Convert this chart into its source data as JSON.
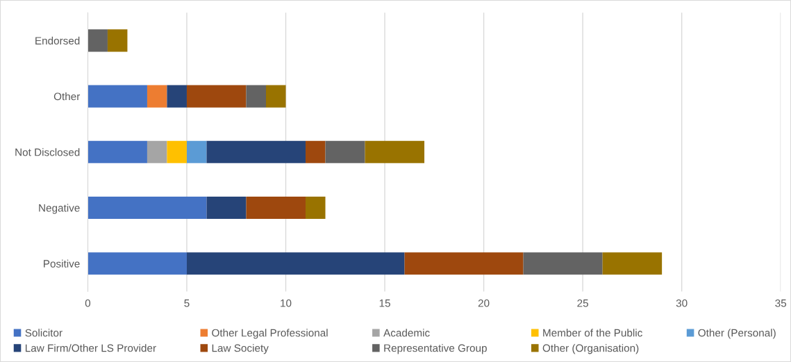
{
  "chart_data": {
    "type": "bar",
    "orientation": "horizontal",
    "stacked": true,
    "categories": [
      "Endorsed",
      "Other",
      "Not Disclosed",
      "Negative",
      "Positive"
    ],
    "series": [
      {
        "name": "Solicitor",
        "color": "#4472c4",
        "values": [
          null,
          3,
          3,
          6,
          5
        ]
      },
      {
        "name": "Other Legal Professional",
        "color": "#ed7d31",
        "values": [
          null,
          1,
          null,
          null,
          null
        ]
      },
      {
        "name": "Academic",
        "color": "#a5a5a5",
        "values": [
          null,
          null,
          1,
          null,
          null
        ]
      },
      {
        "name": "Member of the Public",
        "color": "#ffc000",
        "values": [
          null,
          null,
          1,
          null,
          null
        ]
      },
      {
        "name": "Other (Personal)",
        "color": "#5b9bd5",
        "values": [
          null,
          null,
          1,
          null,
          null
        ]
      },
      {
        "name": "Law Firm/Other LS Provider",
        "color": "#264478",
        "values": [
          null,
          1,
          5,
          2,
          11
        ]
      },
      {
        "name": "Law Society",
        "color": "#9e480e",
        "values": [
          null,
          3,
          1,
          3,
          6
        ]
      },
      {
        "name": "Representative Group",
        "color": "#636363",
        "values": [
          1,
          1,
          2,
          null,
          4
        ]
      },
      {
        "name": "Other (Organisation)",
        "color": "#997300",
        "values": [
          1,
          1,
          3,
          1,
          3
        ]
      }
    ],
    "xlim": [
      0,
      35
    ],
    "xticks": [
      0,
      5,
      10,
      15,
      20,
      25,
      30,
      35
    ],
    "grid": "x",
    "legend": "bottom"
  }
}
